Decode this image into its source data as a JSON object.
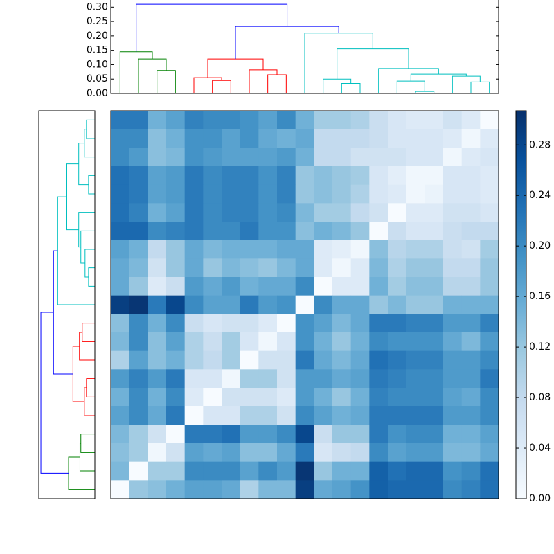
{
  "chart_data": {
    "type": "clustermap",
    "colormap": "Blues",
    "clim": [
      0,
      0.307
    ],
    "colorbar_ticks": [
      {
        "value": 0,
        "label": "0.00"
      },
      {
        "value": 0.04,
        "label": "0.04"
      },
      {
        "value": 0.08,
        "label": "0.08"
      },
      {
        "value": 0.12,
        "label": "0.12"
      },
      {
        "value": 0.16,
        "label": "0.16"
      },
      {
        "value": 0.2,
        "label": "0.20"
      },
      {
        "value": 0.24,
        "label": "0.24"
      },
      {
        "value": 0.28,
        "label": "0.28"
      }
    ],
    "leaf_lim": [
      -0.5,
      20.5
    ],
    "matrix": [
      [
        0.22,
        0.22,
        0.15,
        0.17,
        0.21,
        0.2,
        0.2,
        0.19,
        0.17,
        0.2,
        0.15,
        0.11,
        0.11,
        0.1,
        0.07,
        0.05,
        0.04,
        0.04,
        0.06,
        0.04,
        0.0
      ],
      [
        0.2,
        0.2,
        0.13,
        0.15,
        0.19,
        0.19,
        0.17,
        0.19,
        0.16,
        0.15,
        0.16,
        0.08,
        0.08,
        0.08,
        0.07,
        0.05,
        0.05,
        0.05,
        0.04,
        0.01,
        0.04
      ],
      [
        0.2,
        0.18,
        0.13,
        0.14,
        0.19,
        0.18,
        0.17,
        0.17,
        0.17,
        0.18,
        0.15,
        0.08,
        0.08,
        0.06,
        0.06,
        0.06,
        0.05,
        0.05,
        0.01,
        0.04,
        0.05
      ],
      [
        0.23,
        0.22,
        0.17,
        0.18,
        0.22,
        0.2,
        0.21,
        0.21,
        0.19,
        0.21,
        0.12,
        0.13,
        0.12,
        0.11,
        0.05,
        0.03,
        0.01,
        0.01,
        0.05,
        0.05,
        0.04
      ],
      [
        0.23,
        0.22,
        0.17,
        0.18,
        0.22,
        0.2,
        0.21,
        0.21,
        0.19,
        0.21,
        0.12,
        0.13,
        0.12,
        0.1,
        0.05,
        0.04,
        0.01,
        0.02,
        0.05,
        0.05,
        0.04
      ],
      [
        0.23,
        0.21,
        0.15,
        0.17,
        0.22,
        0.2,
        0.21,
        0.21,
        0.19,
        0.2,
        0.14,
        0.11,
        0.11,
        0.08,
        0.06,
        0.0,
        0.04,
        0.04,
        0.06,
        0.06,
        0.05
      ],
      [
        0.24,
        0.24,
        0.2,
        0.21,
        0.22,
        0.2,
        0.2,
        0.22,
        0.19,
        0.19,
        0.13,
        0.15,
        0.14,
        0.12,
        0.0,
        0.07,
        0.05,
        0.05,
        0.07,
        0.08,
        0.08
      ],
      [
        0.17,
        0.15,
        0.08,
        0.12,
        0.16,
        0.14,
        0.15,
        0.15,
        0.15,
        0.16,
        0.16,
        0.04,
        0.03,
        0.01,
        0.13,
        0.09,
        0.1,
        0.1,
        0.07,
        0.06,
        0.11
      ],
      [
        0.16,
        0.14,
        0.06,
        0.12,
        0.16,
        0.12,
        0.14,
        0.13,
        0.12,
        0.14,
        0.16,
        0.04,
        0.01,
        0.04,
        0.14,
        0.1,
        0.12,
        0.12,
        0.08,
        0.08,
        0.12
      ],
      [
        0.16,
        0.12,
        0.04,
        0.07,
        0.18,
        0.16,
        0.18,
        0.15,
        0.16,
        0.16,
        0.2,
        0.0,
        0.04,
        0.04,
        0.15,
        0.11,
        0.13,
        0.13,
        0.09,
        0.09,
        0.12
      ],
      [
        0.29,
        0.3,
        0.22,
        0.28,
        0.2,
        0.17,
        0.17,
        0.22,
        0.18,
        0.19,
        0.0,
        0.2,
        0.16,
        0.16,
        0.12,
        0.14,
        0.12,
        0.12,
        0.15,
        0.15,
        0.15
      ],
      [
        0.13,
        0.2,
        0.15,
        0.2,
        0.07,
        0.05,
        0.06,
        0.06,
        0.04,
        0.0,
        0.19,
        0.17,
        0.14,
        0.16,
        0.22,
        0.22,
        0.21,
        0.21,
        0.18,
        0.18,
        0.21
      ],
      [
        0.14,
        0.2,
        0.13,
        0.17,
        0.1,
        0.07,
        0.11,
        0.05,
        0.01,
        0.05,
        0.19,
        0.15,
        0.12,
        0.15,
        0.2,
        0.19,
        0.19,
        0.19,
        0.16,
        0.14,
        0.18
      ],
      [
        0.1,
        0.17,
        0.13,
        0.15,
        0.1,
        0.08,
        0.11,
        0.0,
        0.06,
        0.06,
        0.22,
        0.16,
        0.14,
        0.16,
        0.23,
        0.22,
        0.21,
        0.21,
        0.18,
        0.18,
        0.2
      ],
      [
        0.18,
        0.21,
        0.18,
        0.22,
        0.05,
        0.05,
        0.01,
        0.11,
        0.11,
        0.06,
        0.18,
        0.18,
        0.16,
        0.17,
        0.22,
        0.21,
        0.2,
        0.2,
        0.18,
        0.18,
        0.22
      ],
      [
        0.15,
        0.2,
        0.15,
        0.2,
        0.04,
        0.0,
        0.06,
        0.06,
        0.06,
        0.04,
        0.18,
        0.15,
        0.12,
        0.15,
        0.21,
        0.2,
        0.2,
        0.2,
        0.17,
        0.16,
        0.2
      ],
      [
        0.17,
        0.2,
        0.16,
        0.22,
        0.0,
        0.05,
        0.05,
        0.1,
        0.1,
        0.06,
        0.2,
        0.17,
        0.15,
        0.16,
        0.22,
        0.22,
        0.22,
        0.22,
        0.18,
        0.18,
        0.2
      ],
      [
        0.14,
        0.11,
        0.06,
        0.0,
        0.22,
        0.22,
        0.23,
        0.18,
        0.18,
        0.2,
        0.28,
        0.07,
        0.12,
        0.12,
        0.22,
        0.19,
        0.2,
        0.2,
        0.15,
        0.15,
        0.17
      ],
      [
        0.13,
        0.11,
        0.01,
        0.06,
        0.17,
        0.16,
        0.17,
        0.13,
        0.13,
        0.16,
        0.22,
        0.05,
        0.07,
        0.08,
        0.2,
        0.17,
        0.18,
        0.18,
        0.14,
        0.14,
        0.16
      ],
      [
        0.14,
        0.0,
        0.11,
        0.11,
        0.2,
        0.2,
        0.2,
        0.17,
        0.2,
        0.18,
        0.3,
        0.12,
        0.15,
        0.15,
        0.25,
        0.23,
        0.24,
        0.24,
        0.19,
        0.2,
        0.23
      ],
      [
        0.0,
        0.12,
        0.13,
        0.15,
        0.17,
        0.17,
        0.16,
        0.1,
        0.14,
        0.14,
        0.29,
        0.16,
        0.17,
        0.19,
        0.25,
        0.24,
        0.24,
        0.24,
        0.2,
        0.21,
        0.23
      ]
    ],
    "top_dendrogram": {
      "ylim": [
        0,
        0.32
      ],
      "yticks": [
        {
          "value": 0,
          "label": "0.00"
        },
        {
          "value": 0.05,
          "label": "0.05"
        },
        {
          "value": 0.1,
          "label": "0.10"
        },
        {
          "value": 0.15,
          "label": "0.15"
        },
        {
          "value": 0.2,
          "label": "0.20"
        },
        {
          "value": 0.25,
          "label": "0.25"
        },
        {
          "value": 0.3,
          "label": "0.30"
        }
      ],
      "links": [
        {
          "icoord": [
            2,
            2,
            3,
            3
          ],
          "dcoord": [
            0,
            0.08,
            0.08,
            0
          ],
          "color": "#008000"
        },
        {
          "icoord": [
            1,
            1,
            2.5,
            2.5
          ],
          "dcoord": [
            0,
            0.12,
            0.12,
            0.08
          ],
          "color": "#008000"
        },
        {
          "icoord": [
            0,
            0,
            1.75,
            1.75
          ],
          "dcoord": [
            0,
            0.145,
            0.145,
            0.12
          ],
          "color": "#008000"
        },
        {
          "icoord": [
            5,
            5,
            6,
            6
          ],
          "dcoord": [
            0,
            0.045,
            0.045,
            0
          ],
          "color": "#ff0000"
        },
        {
          "icoord": [
            4,
            4,
            5.5,
            5.5
          ],
          "dcoord": [
            0,
            0.055,
            0.055,
            0.045
          ],
          "color": "#ff0000"
        },
        {
          "icoord": [
            8,
            8,
            9,
            9
          ],
          "dcoord": [
            0,
            0.065,
            0.065,
            0
          ],
          "color": "#ff0000"
        },
        {
          "icoord": [
            7,
            7,
            8.5,
            8.5
          ],
          "dcoord": [
            0,
            0.082,
            0.082,
            0.065
          ],
          "color": "#ff0000"
        },
        {
          "icoord": [
            4.75,
            4.75,
            7.75,
            7.75
          ],
          "dcoord": [
            0.055,
            0.12,
            0.12,
            0.082
          ],
          "color": "#ff0000"
        },
        {
          "icoord": [
            12,
            12,
            13,
            13
          ],
          "dcoord": [
            0,
            0.035,
            0.035,
            0
          ],
          "color": "#00bfbf"
        },
        {
          "icoord": [
            11,
            11,
            12.5,
            12.5
          ],
          "dcoord": [
            0,
            0.05,
            0.05,
            0.035
          ],
          "color": "#00bfbf"
        },
        {
          "icoord": [
            16,
            16,
            17,
            17
          ],
          "dcoord": [
            0,
            0.007,
            0.007,
            0
          ],
          "color": "#00bfbf"
        },
        {
          "icoord": [
            15,
            15,
            16.5,
            16.5
          ],
          "dcoord": [
            0,
            0.043,
            0.043,
            0.007
          ],
          "color": "#00bfbf"
        },
        {
          "icoord": [
            19,
            19,
            20,
            20
          ],
          "dcoord": [
            0,
            0.04,
            0.04,
            0
          ],
          "color": "#00bfbf"
        },
        {
          "icoord": [
            18,
            18,
            19.5,
            19.5
          ],
          "dcoord": [
            0,
            0.06,
            0.06,
            0.04
          ],
          "color": "#00bfbf"
        },
        {
          "icoord": [
            15.75,
            15.75,
            18.75,
            18.75
          ],
          "dcoord": [
            0.043,
            0.067,
            0.067,
            0.06
          ],
          "color": "#00bfbf"
        },
        {
          "icoord": [
            14,
            14,
            17.25,
            17.25
          ],
          "dcoord": [
            0,
            0.087,
            0.087,
            0.067
          ],
          "color": "#00bfbf"
        },
        {
          "icoord": [
            11.75,
            11.75,
            15.625,
            15.625
          ],
          "dcoord": [
            0.05,
            0.155,
            0.155,
            0.087
          ],
          "color": "#00bfbf"
        },
        {
          "icoord": [
            10,
            10,
            13.6875,
            13.6875
          ],
          "dcoord": [
            0,
            0.21,
            0.21,
            0.155
          ],
          "color": "#00bfbf"
        },
        {
          "icoord": [
            6.25,
            6.25,
            11.84375,
            11.84375
          ],
          "dcoord": [
            0.12,
            0.233,
            0.233,
            0.21
          ],
          "color": "#0000ff"
        },
        {
          "icoord": [
            0.875,
            0.875,
            9.046875,
            9.046875
          ],
          "dcoord": [
            0.145,
            0.31,
            0.31,
            0.233
          ],
          "color": "#0000ff"
        }
      ]
    },
    "left_dendrogram": {
      "xlim": [
        0.32,
        0
      ],
      "links": [
        {
          "icoord": [
            0,
            0,
            1,
            1
          ],
          "dcoord": [
            0,
            0.048,
            0.048,
            0
          ],
          "color": "#00bfbf"
        },
        {
          "icoord": [
            0.5,
            0.5,
            2,
            2
          ],
          "dcoord": [
            0.048,
            0.06,
            0.06,
            0
          ],
          "color": "#00bfbf"
        },
        {
          "icoord": [
            3,
            3,
            4,
            4
          ],
          "dcoord": [
            0,
            0.036,
            0.036,
            0
          ],
          "color": "#00bfbf"
        },
        {
          "icoord": [
            1.25,
            1.25,
            3.5,
            3.5
          ],
          "dcoord": [
            0.06,
            0.092,
            0.092,
            0.036
          ],
          "color": "#00bfbf"
        },
        {
          "icoord": [
            8,
            8,
            9,
            9
          ],
          "dcoord": [
            0,
            0.036,
            0.036,
            0
          ],
          "color": "#00bfbf"
        },
        {
          "icoord": [
            7,
            7,
            8.5,
            8.5
          ],
          "dcoord": [
            0,
            0.056,
            0.056,
            0.036
          ],
          "color": "#00bfbf"
        },
        {
          "icoord": [
            6,
            6,
            7.75,
            7.75
          ],
          "dcoord": [
            0,
            0.08,
            0.08,
            0.056
          ],
          "color": "#00bfbf"
        },
        {
          "icoord": [
            5,
            5,
            6.875,
            6.875
          ],
          "dcoord": [
            0,
            0.092,
            0.092,
            0.08
          ],
          "color": "#00bfbf"
        },
        {
          "icoord": [
            2.375,
            2.375,
            5.9375,
            5.9375
          ],
          "dcoord": [
            0.092,
            0.16,
            0.16,
            0.092
          ],
          "color": "#00bfbf"
        },
        {
          "icoord": [
            4.15625,
            4.15625,
            10,
            10
          ],
          "dcoord": [
            0.16,
            0.212,
            0.212,
            0
          ],
          "color": "#00bfbf"
        },
        {
          "icoord": [
            11,
            11,
            12,
            12
          ],
          "dcoord": [
            0,
            0.072,
            0.072,
            0
          ],
          "color": "#ff0000"
        },
        {
          "icoord": [
            11.5,
            11.5,
            13,
            13
          ],
          "dcoord": [
            0.072,
            0.088,
            0.088,
            0
          ],
          "color": "#ff0000"
        },
        {
          "icoord": [
            14,
            14,
            15,
            15
          ],
          "dcoord": [
            0,
            0.048,
            0.048,
            0
          ],
          "color": "#ff0000"
        },
        {
          "icoord": [
            14.5,
            14.5,
            16,
            16
          ],
          "dcoord": [
            0.048,
            0.06,
            0.06,
            0
          ],
          "color": "#ff0000"
        },
        {
          "icoord": [
            12.25,
            12.25,
            15.25,
            15.25
          ],
          "dcoord": [
            0.088,
            0.125,
            0.125,
            0.06
          ],
          "color": "#ff0000"
        },
        {
          "icoord": [
            17,
            17,
            18,
            18
          ],
          "dcoord": [
            0,
            0.08,
            0.08,
            0
          ],
          "color": "#008000"
        },
        {
          "icoord": [
            17.5,
            17.5,
            19,
            19
          ],
          "dcoord": [
            0.08,
            0.085,
            0.085,
            0
          ],
          "color": "#008000"
        },
        {
          "icoord": [
            18.25,
            18.25,
            20,
            20
          ],
          "dcoord": [
            0.085,
            0.15,
            0.15,
            0
          ],
          "color": "#008000"
        },
        {
          "icoord": [
            7.078125,
            7.078125,
            13.75,
            13.75
          ],
          "dcoord": [
            0.212,
            0.236,
            0.236,
            0.125
          ],
          "color": "#0000ff"
        },
        {
          "icoord": [
            10.4140625,
            10.4140625,
            19.125,
            19.125
          ],
          "dcoord": [
            0.236,
            0.308,
            0.308,
            0.15
          ],
          "color": "#0000ff"
        }
      ]
    }
  }
}
